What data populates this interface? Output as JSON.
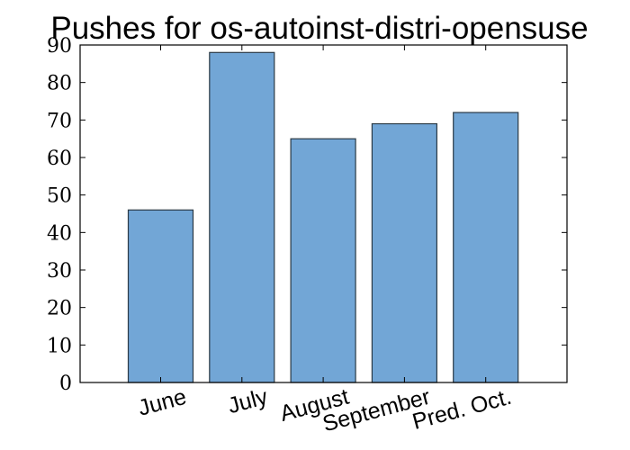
{
  "chart_data": {
    "type": "bar",
    "title": "Pushes for os-autoinst-distri-opensuse",
    "xlabel": "",
    "ylabel": "",
    "categories": [
      "June",
      "July",
      "August",
      "September",
      "Pred. Oct."
    ],
    "values": [
      46,
      88,
      65,
      69,
      72
    ],
    "ylim": [
      0,
      90
    ],
    "yticks": [
      0,
      10,
      20,
      30,
      40,
      50,
      60,
      70,
      80,
      90
    ],
    "grid": false,
    "legend": "none",
    "xtick_rotation": "rotated"
  },
  "colors": {
    "bar_fill": "#72a6d6",
    "bar_edge": "#2b3a45",
    "axis": "#000000",
    "background": "#ffffff"
  }
}
